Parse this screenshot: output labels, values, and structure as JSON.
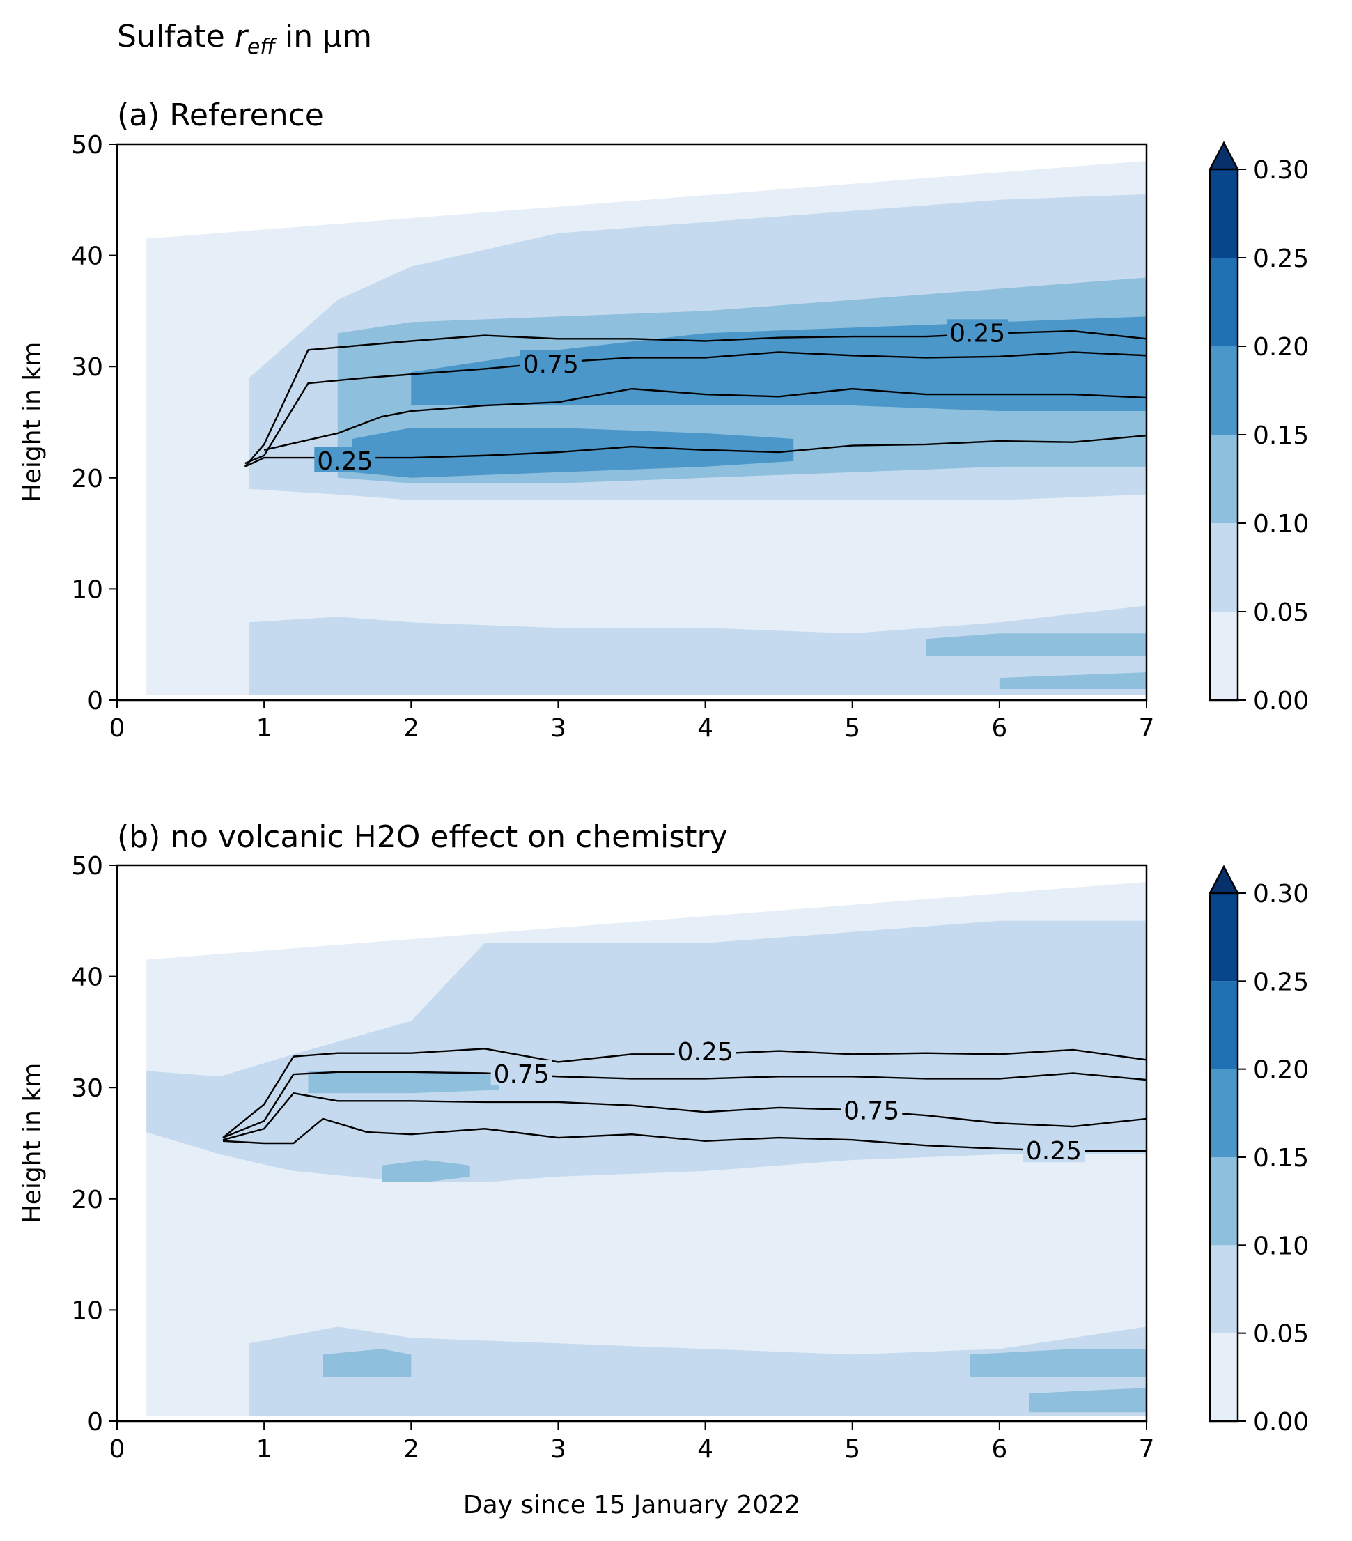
{
  "figure": {
    "suptitle_prefix": "Sulfate ",
    "suptitle_symbol": "r",
    "suptitle_subscript": "eff",
    "suptitle_suffix": " in µm",
    "xlabel": "Day since 15 January 2022"
  },
  "colors": {
    "levels": [
      "#e6eef8",
      "#c5daee",
      "#8ebfdc",
      "#4b97c9",
      "#2070b4",
      "#08468b",
      "#08306b"
    ],
    "contour_line": "#000000",
    "background_nodata": "#ffffff"
  },
  "chart_data": [
    {
      "type": "heatmap",
      "subtype": "filled-contour with line contours",
      "title": "(a) Reference",
      "xlabel": "",
      "ylabel": "Height in km",
      "xlim": [
        0,
        7
      ],
      "ylim": [
        0,
        50
      ],
      "xticks": [
        "0",
        "1",
        "2",
        "3",
        "4",
        "5",
        "6",
        "7"
      ],
      "yticks": [
        "0",
        "10",
        "20",
        "30",
        "40",
        "50"
      ],
      "colorbar": {
        "levels": [
          0.0,
          0.05,
          0.1,
          0.15,
          0.2,
          0.25,
          0.3
        ],
        "ticks": [
          "0.00",
          "0.05",
          "0.10",
          "0.15",
          "0.20",
          "0.25",
          "0.30"
        ],
        "extend": "max"
      },
      "regions": [
        {
          "level": 1,
          "x": [
            0.2,
            7.0
          ],
          "y_bottom": [
            0.5,
            0.5
          ],
          "y_top": [
            41.5,
            48.5
          ],
          "note": "background 0.00-0.05 region"
        },
        {
          "level": 2,
          "x": [
            0.9,
            1.5,
            2.0,
            3.0,
            4.0,
            5.0,
            6.0,
            7.0
          ],
          "y_bottom": [
            19,
            18.5,
            18,
            18,
            18,
            18,
            18,
            18.5
          ],
          "y_top": [
            29,
            36,
            39,
            42,
            43,
            44,
            45,
            45.5
          ],
          "note": "0.05-0.10 stratospheric layer"
        },
        {
          "level": 3,
          "x": [
            1.5,
            2.0,
            3.0,
            4.0,
            5.0,
            6.0,
            7.0
          ],
          "y_bottom": [
            20,
            19.5,
            19.5,
            20,
            20.5,
            21,
            21
          ],
          "y_top": [
            33,
            34,
            34.5,
            35,
            36,
            37,
            38
          ],
          "note": "0.10-0.15 layer"
        },
        {
          "level": 4,
          "x": [
            2.0,
            3.0,
            4.0,
            5.0,
            6.0,
            7.0
          ],
          "y_bottom": [
            26.5,
            26.5,
            26.5,
            26.5,
            26,
            26
          ],
          "y_top": [
            29.5,
            31.5,
            33,
            33.5,
            34,
            34.5
          ],
          "note": "0.15-0.20 upper band"
        },
        {
          "level": 4,
          "x": [
            1.6,
            2.0,
            3.0,
            4.0,
            4.6
          ],
          "y_bottom": [
            20.5,
            20,
            20.5,
            21,
            21.5
          ],
          "y_top": [
            23.5,
            24.5,
            24.5,
            24,
            23.5
          ],
          "note": "0.15-0.20 lower band"
        },
        {
          "level": 2,
          "x": [
            0.9,
            1.5,
            2.0,
            3.0,
            4.0,
            5.0,
            6.0,
            7.0
          ],
          "y_bottom": [
            0.5,
            0.5,
            0.5,
            0.5,
            0.5,
            0.5,
            0.5,
            0.5
          ],
          "y_top": [
            7,
            7.5,
            7,
            6.5,
            6.5,
            6,
            7,
            8.5
          ],
          "note": "tropospheric 0.05-0.10"
        },
        {
          "level": 3,
          "x": [
            5.5,
            6.0,
            6.5,
            7.0
          ],
          "y_bottom": [
            4,
            4,
            4,
            4
          ],
          "y_top": [
            5.5,
            6,
            6,
            6
          ],
          "note": "tropospheric 0.10-0.15"
        },
        {
          "level": 3,
          "x": [
            6.0,
            7.0
          ],
          "y_bottom": [
            1,
            1
          ],
          "y_top": [
            2,
            2.5
          ],
          "note": "near-surface 0.10-0.15"
        }
      ],
      "contours": [
        {
          "label": "0.25",
          "x": [
            0.87,
            1.0,
            1.3,
            2.0,
            2.5,
            3.0,
            3.5,
            4.0,
            4.5,
            5.0,
            5.5,
            6.0,
            6.5,
            7.0
          ],
          "y": [
            21,
            23,
            31.5,
            32.3,
            32.8,
            32.5,
            32.5,
            32.3,
            32.6,
            32.7,
            32.7,
            33,
            33.2,
            32.5
          ],
          "label_at": {
            "x": 5.85,
            "y": 33
          }
        },
        {
          "label": "0.75",
          "x": [
            0.87,
            1.0,
            1.3,
            1.7,
            2.0,
            2.5,
            3.0,
            3.5,
            4.0,
            4.5,
            5.0,
            5.5,
            6.0,
            6.5,
            7.0
          ],
          "y": [
            21.3,
            22,
            28.5,
            29,
            29.3,
            29.8,
            30.4,
            30.8,
            30.8,
            31.3,
            31.0,
            30.8,
            30.9,
            31.3,
            31.0
          ],
          "label_at": {
            "x": 2.95,
            "y": 30.2
          }
        },
        {
          "label": "",
          "x": [
            1.0,
            1.5,
            1.8,
            2.0,
            2.5,
            3.0,
            3.5,
            4.0,
            4.5,
            5.0,
            5.5,
            6.0,
            6.5,
            7.0
          ],
          "y": [
            22.5,
            24,
            25.5,
            26,
            26.5,
            26.8,
            28,
            27.5,
            27.3,
            28,
            27.5,
            27.5,
            27.5,
            27.2
          ]
        },
        {
          "label": "0.25",
          "x": [
            0.87,
            1.0,
            1.5,
            2.0,
            2.5,
            3.0,
            3.5,
            4.0,
            4.5,
            5.0,
            5.5,
            6.0,
            6.5,
            7.0
          ],
          "y": [
            21,
            21.8,
            21.8,
            21.8,
            22,
            22.3,
            22.8,
            22.5,
            22.3,
            22.9,
            23.0,
            23.3,
            23.2,
            23.8
          ],
          "label_at": {
            "x": 1.55,
            "y": 21.5
          }
        }
      ]
    },
    {
      "type": "heatmap",
      "subtype": "filled-contour with line contours",
      "title": "(b) no volcanic H2O effect on chemistry",
      "xlabel": "Day since 15 January 2022",
      "ylabel": "Height in km",
      "xlim": [
        0,
        7
      ],
      "ylim": [
        0,
        50
      ],
      "xticks": [
        "0",
        "1",
        "2",
        "3",
        "4",
        "5",
        "6",
        "7"
      ],
      "yticks": [
        "0",
        "10",
        "20",
        "30",
        "40",
        "50"
      ],
      "colorbar": {
        "levels": [
          0.0,
          0.05,
          0.1,
          0.15,
          0.2,
          0.25,
          0.3
        ],
        "ticks": [
          "0.00",
          "0.05",
          "0.10",
          "0.15",
          "0.20",
          "0.25",
          "0.30"
        ],
        "extend": "max"
      },
      "regions": [
        {
          "level": 1,
          "x": [
            0.2,
            7.0
          ],
          "y_bottom": [
            0.5,
            0.5
          ],
          "y_top": [
            41.5,
            48.5
          ],
          "note": "background 0.00-0.05 region"
        },
        {
          "level": 2,
          "x": [
            0.2,
            0.7,
            1.2,
            2.0,
            2.5,
            3.0,
            4.0,
            5.0,
            6.0,
            7.0
          ],
          "y_bottom": [
            26,
            24,
            22.5,
            21.5,
            21.5,
            22,
            22.5,
            23.5,
            24,
            24
          ],
          "y_top": [
            31.5,
            31,
            33,
            36,
            43,
            43,
            43,
            44,
            45,
            45
          ],
          "note": "0.05-0.10 stratospheric layer"
        },
        {
          "level": 3,
          "x": [
            1.3,
            1.7,
            2.0,
            2.6
          ],
          "y_bottom": [
            29.5,
            29.5,
            29.5,
            29.8
          ],
          "y_top": [
            31.5,
            31.5,
            31.5,
            31.2
          ],
          "note": "0.10-0.15 upper patch"
        },
        {
          "level": 3,
          "x": [
            1.8,
            2.1,
            2.4
          ],
          "y_bottom": [
            21.5,
            21.5,
            22
          ],
          "y_top": [
            23,
            23.5,
            23
          ],
          "note": "0.10-0.15 lower patch"
        },
        {
          "level": 2,
          "x": [
            0.9,
            1.5,
            2.0,
            3.0,
            4.0,
            5.0,
            6.0,
            7.0
          ],
          "y_bottom": [
            0.5,
            0.5,
            0.5,
            0.5,
            0.5,
            0.5,
            0.5,
            0.5
          ],
          "y_top": [
            7,
            8.5,
            7.5,
            7,
            6.5,
            6,
            6.5,
            8.5
          ],
          "note": "tropospheric 0.05-0.10"
        },
        {
          "level": 3,
          "x": [
            1.4,
            1.8,
            2.0
          ],
          "y_bottom": [
            4,
            4,
            4
          ],
          "y_top": [
            6,
            6.5,
            6
          ],
          "note": "tropospheric 0.10-0.15 left"
        },
        {
          "level": 3,
          "x": [
            5.8,
            6.5,
            7.0
          ],
          "y_bottom": [
            4,
            4,
            4
          ],
          "y_top": [
            6,
            6.5,
            6.5
          ],
          "note": "tropospheric 0.10-0.15 right"
        },
        {
          "level": 3,
          "x": [
            6.2,
            7.0
          ],
          "y_bottom": [
            0.8,
            0.8
          ],
          "y_top": [
            2.5,
            3
          ],
          "note": "near-surface 0.10-0.15"
        }
      ],
      "contours": [
        {
          "label": "0.25",
          "x": [
            0.72,
            1.0,
            1.2,
            1.5,
            2.0,
            2.5,
            3.0,
            3.5,
            4.0,
            4.5,
            5.0,
            5.5,
            6.0,
            6.5,
            7.0
          ],
          "y": [
            25.5,
            28.5,
            32.8,
            33.1,
            33.1,
            33.5,
            32.3,
            33.0,
            33.0,
            33.3,
            33.0,
            33.1,
            33.0,
            33.4,
            32.5
          ],
          "label_at": {
            "x": 4.0,
            "y": 33.2
          }
        },
        {
          "label": "0.75",
          "x": [
            0.72,
            1.0,
            1.2,
            1.5,
            2.0,
            2.5,
            3.0,
            3.5,
            4.0,
            4.5,
            5.0,
            5.5,
            6.0,
            6.5,
            7.0
          ],
          "y": [
            25.5,
            27,
            31.2,
            31.4,
            31.4,
            31.3,
            31.0,
            30.8,
            30.8,
            31.0,
            31.0,
            30.8,
            30.8,
            31.3,
            30.7
          ],
          "label_at": {
            "x": 2.75,
            "y": 31.2
          }
        },
        {
          "label": "0.75",
          "x": [
            0.72,
            1.0,
            1.2,
            1.5,
            2.0,
            2.5,
            3.0,
            3.5,
            4.0,
            4.5,
            5.0,
            5.5,
            6.0,
            6.5,
            7.0
          ],
          "y": [
            25.3,
            26.3,
            29.5,
            28.8,
            28.8,
            28.7,
            28.7,
            28.4,
            27.8,
            28.2,
            28.0,
            27.5,
            26.8,
            26.5,
            27.2
          ],
          "label_at": {
            "x": 5.13,
            "y": 27.9
          }
        },
        {
          "label": "0.25",
          "x": [
            0.72,
            1.0,
            1.2,
            1.4,
            1.7,
            2.0,
            2.5,
            3.0,
            3.5,
            4.0,
            4.5,
            5.0,
            5.5,
            6.0,
            6.5,
            7.0
          ],
          "y": [
            25.2,
            25.0,
            25.0,
            27.2,
            26.0,
            25.8,
            26.3,
            25.5,
            25.8,
            25.2,
            25.5,
            25.3,
            24.8,
            24.5,
            24.3,
            24.3
          ],
          "label_at": {
            "x": 6.37,
            "y": 24.3
          }
        }
      ]
    }
  ]
}
